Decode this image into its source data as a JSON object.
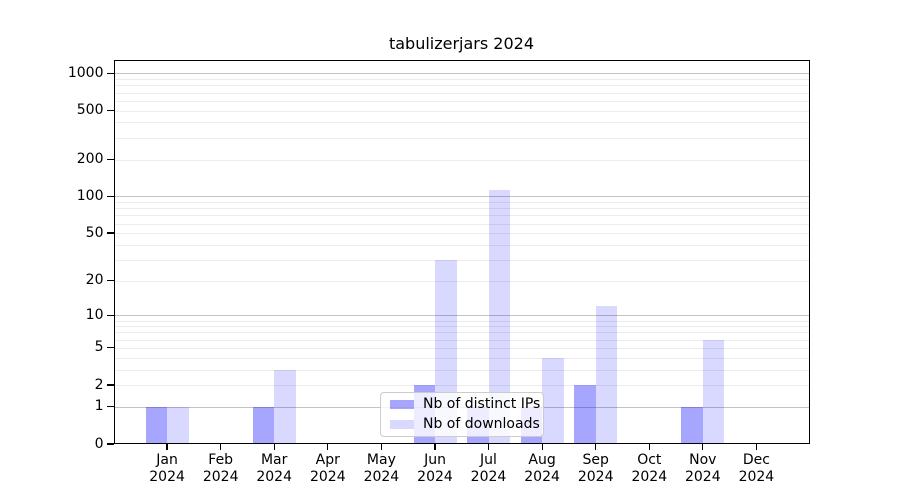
{
  "chart_data": {
    "type": "bar",
    "title": "tabulizerjars 2024",
    "categories": [
      "Jan 2024",
      "Feb 2024",
      "Mar 2024",
      "Apr 2024",
      "May 2024",
      "Jun 2024",
      "Jul 2024",
      "Aug 2024",
      "Sep 2024",
      "Oct 2024",
      "Nov 2024",
      "Dec 2024"
    ],
    "series": [
      {
        "name": "Nb of distinct IPs",
        "values": [
          1,
          0,
          1,
          0,
          0,
          2,
          1,
          1,
          2,
          0,
          1,
          0
        ],
        "color": "rgba(0,0,255,0.35)"
      },
      {
        "name": "Nb of downloads",
        "values": [
          1,
          0,
          3,
          0,
          0,
          30,
          113,
          4,
          12,
          0,
          6,
          0
        ],
        "color": "rgba(0,0,255,0.15)"
      }
    ],
    "yscale": "log1p",
    "yticks": [
      0,
      1,
      2,
      5,
      10,
      20,
      50,
      100,
      200,
      500,
      1000
    ],
    "ylim": [
      0,
      1295
    ],
    "grid": {
      "orientation": "horizontal",
      "major_values": [
        1,
        10,
        100,
        1000
      ],
      "major_color": "#c3c3c3",
      "minor_color": "#ececec"
    },
    "legend_position": "lower center inside plot"
  }
}
